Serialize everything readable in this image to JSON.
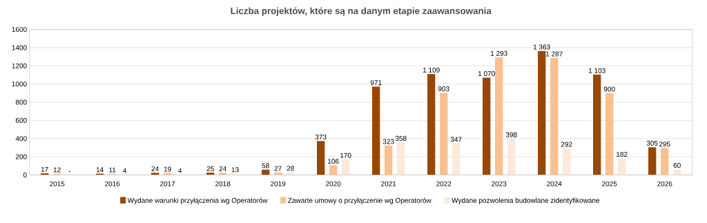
{
  "chart_data": {
    "type": "bar",
    "title": "Liczba projektów, które są na danym etapie zaawansowania",
    "categories": [
      "2015",
      "2016",
      "2017",
      "2018",
      "2019",
      "2020",
      "2021",
      "2022",
      "2023",
      "2024",
      "2025",
      "2026"
    ],
    "series": [
      {
        "name": "Wydane warunki przyłączenia wg Operatorów",
        "color": "#974806",
        "values": [
          17,
          14,
          24,
          25,
          58,
          373,
          971,
          1109,
          1070,
          1363,
          1103,
          305
        ],
        "value_labels": [
          "17",
          "14",
          "24",
          "25",
          "58",
          "373",
          "971",
          "1 109",
          "1 070",
          "1 363",
          "1 103",
          "305"
        ]
      },
      {
        "name": "Zawarte umowy o przyłączenie wg Operatorów",
        "color": "#fac090",
        "values": [
          12,
          11,
          19,
          24,
          27,
          106,
          323,
          903,
          1293,
          1287,
          900,
          295
        ],
        "value_labels": [
          "12",
          "11",
          "19",
          "24",
          "27",
          "106",
          "323",
          "903",
          "1 293",
          "1 287",
          "900",
          "295"
        ]
      },
      {
        "name": "Wydane pozwolenia budowlane zidentyfikowane",
        "color": "#fde9d9",
        "values": [
          null,
          4,
          4,
          13,
          28,
          170,
          358,
          347,
          398,
          292,
          182,
          60
        ],
        "value_labels": [
          "-",
          "4",
          "4",
          "13",
          "28",
          "170",
          "358",
          "347",
          "398",
          "292",
          "182",
          "60"
        ]
      }
    ],
    "ylim": [
      0,
      1600
    ],
    "yticks": [
      0,
      200,
      400,
      600,
      800,
      1000,
      1200,
      1400,
      1600
    ],
    "grid": "y",
    "legend": "bottom"
  }
}
